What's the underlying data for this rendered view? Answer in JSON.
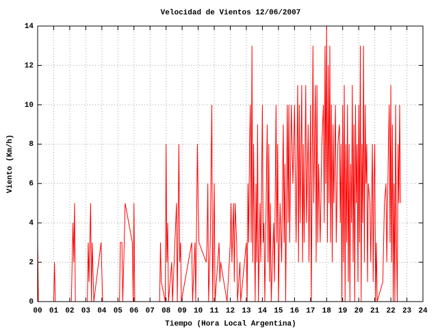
{
  "chart_data": {
    "type": "line",
    "title": "Velocidad de Vientos 12/06/2007",
    "xlabel": "Tiempo (Hora Local Argentina)",
    "ylabel": "Viento (Km/h)",
    "color": "#ff0000",
    "grid": true,
    "xlim": [
      0,
      24
    ],
    "ylim": [
      0,
      14
    ],
    "xticks": [
      {
        "value": 0,
        "label": "00"
      },
      {
        "value": 1,
        "label": "01"
      },
      {
        "value": 2,
        "label": "02"
      },
      {
        "value": 3,
        "label": "03"
      },
      {
        "value": 4,
        "label": "04"
      },
      {
        "value": 5,
        "label": "05"
      },
      {
        "value": 6,
        "label": "06"
      },
      {
        "value": 7,
        "label": "07"
      },
      {
        "value": 8,
        "label": "08"
      },
      {
        "value": 9,
        "label": "09"
      },
      {
        "value": 10,
        "label": "10"
      },
      {
        "value": 11,
        "label": "11"
      },
      {
        "value": 12,
        "label": "12"
      },
      {
        "value": 13,
        "label": "13"
      },
      {
        "value": 14,
        "label": "14"
      },
      {
        "value": 15,
        "label": "15"
      },
      {
        "value": 16,
        "label": "16"
      },
      {
        "value": 17,
        "label": "17"
      },
      {
        "value": 18,
        "label": "18"
      },
      {
        "value": 19,
        "label": "19"
      },
      {
        "value": 20,
        "label": "20"
      },
      {
        "value": 21,
        "label": "21"
      },
      {
        "value": 22,
        "label": "22"
      },
      {
        "value": 23,
        "label": "23"
      },
      {
        "value": 24,
        "label": "24"
      }
    ],
    "yticks": [
      0,
      2,
      4,
      6,
      8,
      10,
      12,
      14
    ],
    "x": [
      0,
      0.05,
      1.0,
      1.05,
      1.1,
      2.1,
      2.15,
      2.2,
      2.25,
      2.3,
      2.35,
      3.1,
      3.15,
      3.2,
      3.3,
      3.35,
      3.4,
      3.5,
      3.95,
      4.05,
      5.1,
      5.15,
      5.25,
      5.3,
      5.35,
      5.45,
      5.9,
      5.95,
      6.0,
      6.05,
      7.6,
      7.65,
      7.7,
      7.95,
      8.0,
      8.05,
      8.1,
      8.15,
      8.35,
      8.4,
      8.65,
      8.7,
      8.8,
      8.85,
      8.9,
      8.95,
      9.6,
      9.65,
      9.8,
      9.85,
      9.95,
      10.0,
      10.05,
      10.5,
      10.55,
      10.6,
      10.65,
      10.75,
      10.85,
      10.9,
      11.0,
      11.05,
      11.3,
      11.35,
      11.4,
      11.8,
      12.0,
      12.05,
      12.1,
      12.2,
      12.25,
      12.3,
      12.4,
      12.45,
      12.6,
      12.65,
      13.0,
      13.05,
      13.1,
      13.15,
      13.2,
      13.25,
      13.3,
      13.35,
      13.4,
      13.45,
      13.5,
      13.55,
      13.6,
      13.65,
      13.7,
      13.75,
      13.85,
      13.9,
      14.0,
      14.05,
      14.1,
      14.15,
      14.3,
      14.35,
      14.4,
      14.45,
      14.5,
      14.55,
      14.7,
      14.75,
      14.85,
      14.9,
      14.95,
      15.0,
      15.1,
      15.2,
      15.3,
      15.35,
      15.4,
      15.45,
      15.55,
      15.6,
      15.65,
      15.7,
      15.8,
      15.9,
      16.0,
      16.1,
      16.2,
      16.25,
      16.3,
      16.35,
      16.45,
      16.5,
      16.55,
      16.6,
      16.7,
      16.75,
      16.85,
      16.9,
      17.0,
      17.05,
      17.15,
      17.2,
      17.3,
      17.35,
      17.4,
      17.45,
      17.5,
      17.6,
      17.7,
      17.8,
      17.85,
      17.9,
      17.95,
      18.0,
      18.05,
      18.1,
      18.15,
      18.2,
      18.25,
      18.3,
      18.35,
      18.4,
      18.45,
      18.55,
      18.6,
      18.7,
      18.8,
      18.85,
      18.9,
      18.95,
      19.0,
      19.05,
      19.1,
      19.15,
      19.2,
      19.25,
      19.3,
      19.35,
      19.4,
      19.45,
      19.5,
      19.55,
      19.6,
      19.65,
      19.7,
      19.75,
      19.8,
      19.85,
      19.9,
      19.95,
      20.0,
      20.05,
      20.1,
      20.15,
      20.2,
      20.25,
      20.3,
      20.35,
      20.4,
      20.45,
      20.5,
      20.55,
      20.6,
      20.7,
      20.75,
      20.85,
      20.9,
      20.95,
      21.0,
      21.05,
      21.1,
      21.15,
      21.5,
      21.6,
      21.7,
      21.75,
      21.85,
      21.9,
      21.95,
      22.0,
      22.05,
      22.1,
      22.15,
      22.2,
      22.25,
      22.3,
      22.35,
      22.4,
      22.45,
      22.5,
      22.55,
      22.6
    ],
    "values": [
      3,
      0,
      0,
      2,
      0,
      0,
      2,
      4,
      2,
      5,
      0,
      0,
      3,
      1,
      5,
      0,
      3,
      0,
      3,
      0,
      0,
      3,
      3,
      0,
      1.5,
      5,
      3,
      0,
      5,
      0,
      0,
      3,
      1,
      0,
      8,
      2,
      4,
      0,
      2,
      0,
      5,
      0,
      8,
      2,
      3,
      0,
      3,
      0,
      3,
      0,
      8,
      5,
      3,
      2,
      3,
      6,
      0,
      3,
      10,
      0,
      6,
      0,
      3,
      1,
      2,
      0,
      3,
      5,
      2,
      5,
      1,
      5,
      3,
      0,
      2,
      0,
      3,
      0,
      6,
      3,
      8,
      10,
      3,
      13,
      2,
      8,
      4,
      0,
      6,
      2,
      9,
      0,
      5,
      2,
      10,
      3,
      4,
      0,
      9,
      2,
      8,
      1,
      5,
      0,
      4,
      1,
      10,
      3,
      8,
      0,
      5,
      2,
      9,
      3,
      7,
      0,
      10,
      4,
      10,
      3,
      10,
      6,
      10,
      3,
      11,
      2,
      10,
      4,
      11,
      2,
      8,
      3,
      11,
      4,
      9,
      2,
      10,
      0,
      13,
      5,
      11,
      2,
      11,
      3,
      7,
      3,
      8,
      10,
      4,
      13,
      6,
      14,
      3,
      12,
      5,
      13,
      3,
      10,
      2,
      9,
      5,
      10,
      3,
      8,
      9,
      4,
      8,
      0,
      10,
      2,
      11,
      0,
      8,
      3,
      10,
      1,
      8,
      0,
      7,
      4,
      11,
      2,
      9,
      0,
      10,
      5,
      8,
      1,
      10,
      3,
      13,
      0,
      8,
      4,
      13,
      2,
      10,
      6,
      8,
      1,
      6,
      5,
      2,
      8,
      1,
      6,
      8,
      0,
      3,
      0,
      1,
      5,
      6,
      2,
      8,
      10,
      3,
      11,
      2,
      9,
      0,
      6,
      0,
      10,
      3,
      0,
      8,
      5,
      10,
      5
    ]
  }
}
